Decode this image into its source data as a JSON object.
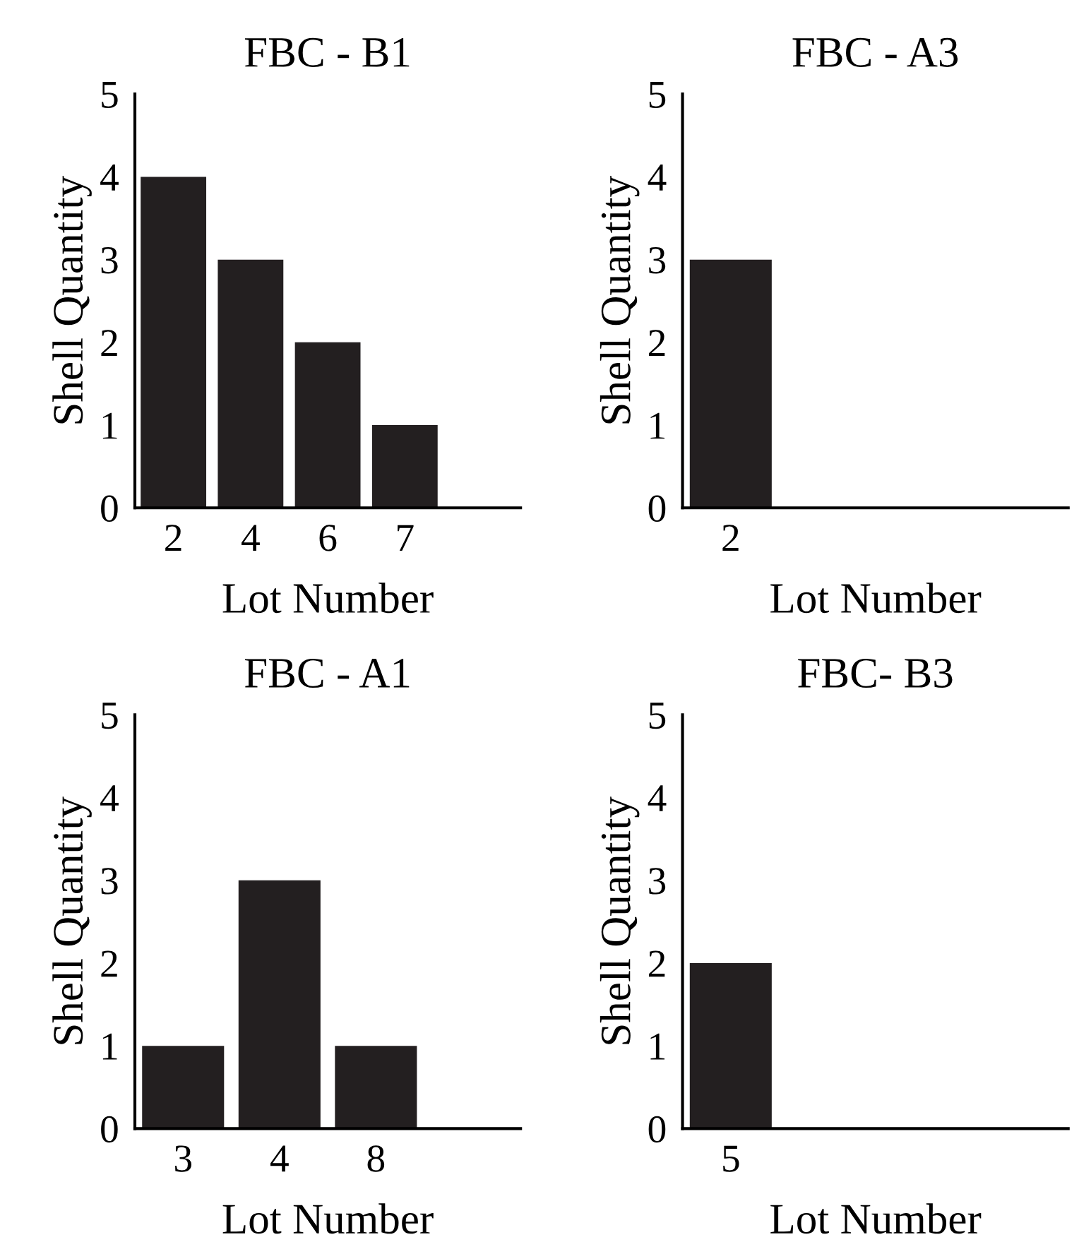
{
  "chart_data": [
    {
      "type": "bar",
      "title": "FBC - B1",
      "xlabel": "Lot Number",
      "ylabel": "Shell Quantity",
      "categories": [
        "2",
        "4",
        "6",
        "7",
        null
      ],
      "values": [
        4,
        3,
        2,
        1,
        null
      ],
      "color": "#231f20",
      "ylim": [
        0,
        5
      ],
      "yticks": [
        0,
        1,
        2,
        3,
        4,
        5
      ],
      "grid": false,
      "legend": false
    },
    {
      "type": "bar",
      "title": "FBC - A1",
      "xlabel": "Lot Number",
      "ylabel": "Shell Quantity",
      "categories": [
        "3",
        "4",
        "8",
        null
      ],
      "values": [
        1,
        3,
        1,
        null
      ],
      "color": "#231f20",
      "ylim": [
        0,
        5
      ],
      "yticks": [
        0,
        1,
        2,
        3,
        4,
        5
      ],
      "grid": false,
      "legend": false
    },
    {
      "type": "bar",
      "title": "FBC - A3",
      "xlabel": "Lot Number",
      "ylabel": "Shell Quantity",
      "categories": [
        "2"
      ],
      "values": [
        3
      ],
      "color": "#231f20",
      "ylim": [
        0,
        5
      ],
      "yticks": [
        0,
        1,
        2,
        3,
        4,
        5
      ],
      "grid": false,
      "legend": false
    },
    {
      "type": "bar",
      "title": "FBC- B3",
      "xlabel": "Lot Number",
      "ylabel": "Shell Quantity",
      "categories": [
        "5"
      ],
      "values": [
        2
      ],
      "color": "#231f20",
      "ylim": [
        0,
        5
      ],
      "yticks": [
        0,
        1,
        2,
        3,
        4,
        5
      ],
      "grid": false,
      "legend": false
    }
  ]
}
